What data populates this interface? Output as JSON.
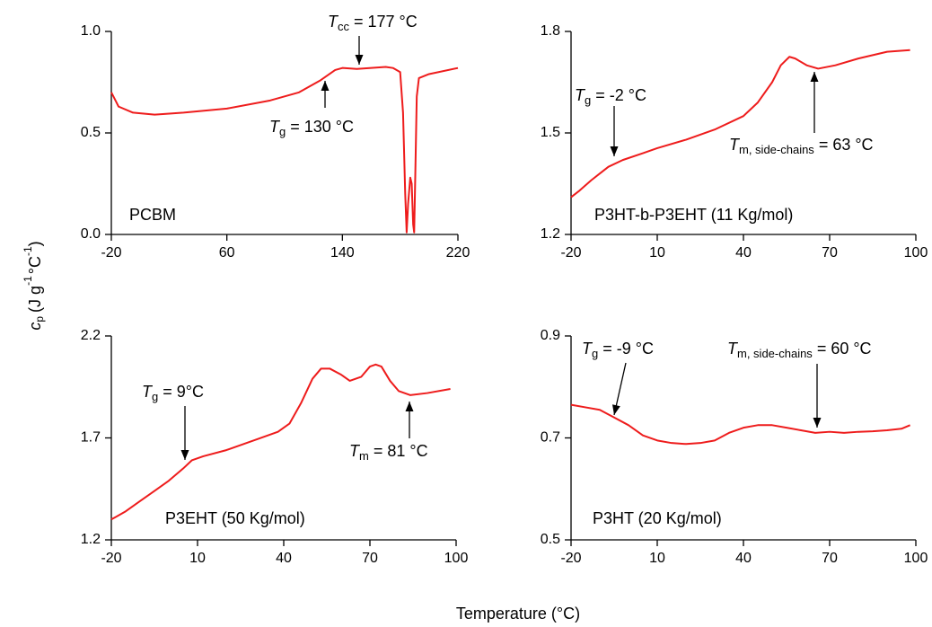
{
  "axis_labels": {
    "x": "Temperature (°C)",
    "y": {
      "symbol": "c",
      "sub": "p",
      "unit1": "(J g",
      "sup1": "-1",
      "unit2": "°C",
      "sup2": "-1",
      "close": ")"
    }
  },
  "chart_data": [
    {
      "type": "line",
      "label": "PCBM",
      "xlim": [
        -20,
        220
      ],
      "xticks": [
        -20,
        60,
        140,
        220
      ],
      "ylim": [
        0.0,
        1.0
      ],
      "yticks": [
        {
          "value": 0,
          "label": "0.0"
        },
        0.5,
        {
          "value": 1,
          "label": "1.0"
        }
      ],
      "annotations": [
        {
          "symbol": "T",
          "sub": "cc",
          "text": "= 177 °C"
        },
        {
          "symbol": "T",
          "sub": "g",
          "text": "= 130 °C"
        }
      ],
      "series": [
        {
          "color": "#ee1c1c",
          "x": [
            -20,
            -15,
            -5,
            10,
            30,
            60,
            90,
            110,
            125,
            135,
            140,
            150,
            160,
            170,
            175,
            180,
            182,
            183.5,
            184.5,
            185.5,
            187,
            188,
            189,
            189.7,
            190.5,
            191.5,
            193,
            200,
            220
          ],
          "values": [
            0.7,
            0.63,
            0.6,
            0.59,
            0.6,
            0.62,
            0.66,
            0.7,
            0.76,
            0.81,
            0.82,
            0.815,
            0.82,
            0.825,
            0.82,
            0.8,
            0.6,
            0.2,
            0.01,
            0.15,
            0.28,
            0.25,
            0.05,
            0.01,
            0.3,
            0.68,
            0.77,
            0.79,
            0.82
          ]
        }
      ]
    },
    {
      "type": "line",
      "label": "P3HT-b-P3EHT (11 Kg/mol)",
      "xlim": [
        -20,
        100
      ],
      "xticks": [
        -20,
        10,
        40,
        70,
        100
      ],
      "ylim": [
        1.2,
        1.8
      ],
      "yticks": [
        1.2,
        1.5,
        1.8
      ],
      "annotations": [
        {
          "symbol": "T",
          "sub": "g",
          "text": "= -2 °C"
        },
        {
          "symbol": "T",
          "sub": "m, side-chains",
          "text": "= 63 °C"
        }
      ],
      "series": [
        {
          "color": "#ee1c1c",
          "x": [
            -20,
            -17,
            -13,
            -10,
            -7,
            -2,
            5,
            10,
            20,
            30,
            40,
            45,
            50,
            53,
            56,
            58,
            62,
            66,
            72,
            80,
            90,
            98
          ],
          "values": [
            1.31,
            1.33,
            1.36,
            1.38,
            1.4,
            1.42,
            1.44,
            1.455,
            1.48,
            1.51,
            1.55,
            1.59,
            1.65,
            1.7,
            1.725,
            1.72,
            1.7,
            1.69,
            1.7,
            1.72,
            1.74,
            1.745
          ]
        }
      ]
    },
    {
      "type": "line",
      "label": "P3EHT (50 Kg/mol)",
      "xlim": [
        -20,
        100
      ],
      "xticks": [
        -20,
        10,
        40,
        70,
        100
      ],
      "ylim": [
        1.2,
        2.2
      ],
      "yticks": [
        1.2,
        1.7,
        2.2
      ],
      "annotations": [
        {
          "symbol": "T",
          "sub": "g",
          "text": "= 9°C"
        },
        {
          "symbol": "T",
          "sub": "m",
          "text": "= 81 °C"
        }
      ],
      "series": [
        {
          "color": "#ee1c1c",
          "x": [
            -20,
            -15,
            -10,
            -5,
            0,
            5,
            8,
            12,
            20,
            30,
            38,
            42,
            46,
            50,
            53,
            56,
            60,
            63,
            67,
            70,
            72,
            74,
            77,
            80,
            84,
            90,
            98
          ],
          "values": [
            1.3,
            1.34,
            1.39,
            1.44,
            1.49,
            1.55,
            1.59,
            1.61,
            1.64,
            1.69,
            1.73,
            1.77,
            1.87,
            1.99,
            2.04,
            2.04,
            2.01,
            1.98,
            2.0,
            2.05,
            2.06,
            2.05,
            1.98,
            1.93,
            1.91,
            1.92,
            1.94
          ]
        }
      ]
    },
    {
      "type": "line",
      "label": "P3HT (20 Kg/mol)",
      "xlim": [
        -20,
        100
      ],
      "xticks": [
        -20,
        10,
        40,
        70,
        100
      ],
      "ylim": [
        0.5,
        0.9
      ],
      "yticks": [
        0.5,
        0.7,
        0.9
      ],
      "annotations": [
        {
          "symbol": "T",
          "sub": "g",
          "text": "= -9 °C"
        },
        {
          "symbol": "T",
          "sub": "m, side-chains",
          "text": "= 60 °C"
        }
      ],
      "series": [
        {
          "color": "#ee1c1c",
          "x": [
            -20,
            -15,
            -10,
            -5,
            0,
            5,
            10,
            15,
            20,
            25,
            30,
            35,
            40,
            45,
            50,
            55,
            60,
            65,
            70,
            75,
            80,
            85,
            90,
            95,
            98
          ],
          "values": [
            0.765,
            0.76,
            0.755,
            0.74,
            0.725,
            0.705,
            0.695,
            0.69,
            0.688,
            0.69,
            0.695,
            0.71,
            0.72,
            0.725,
            0.725,
            0.72,
            0.715,
            0.71,
            0.712,
            0.71,
            0.712,
            0.713,
            0.715,
            0.718,
            0.725
          ]
        }
      ]
    }
  ]
}
